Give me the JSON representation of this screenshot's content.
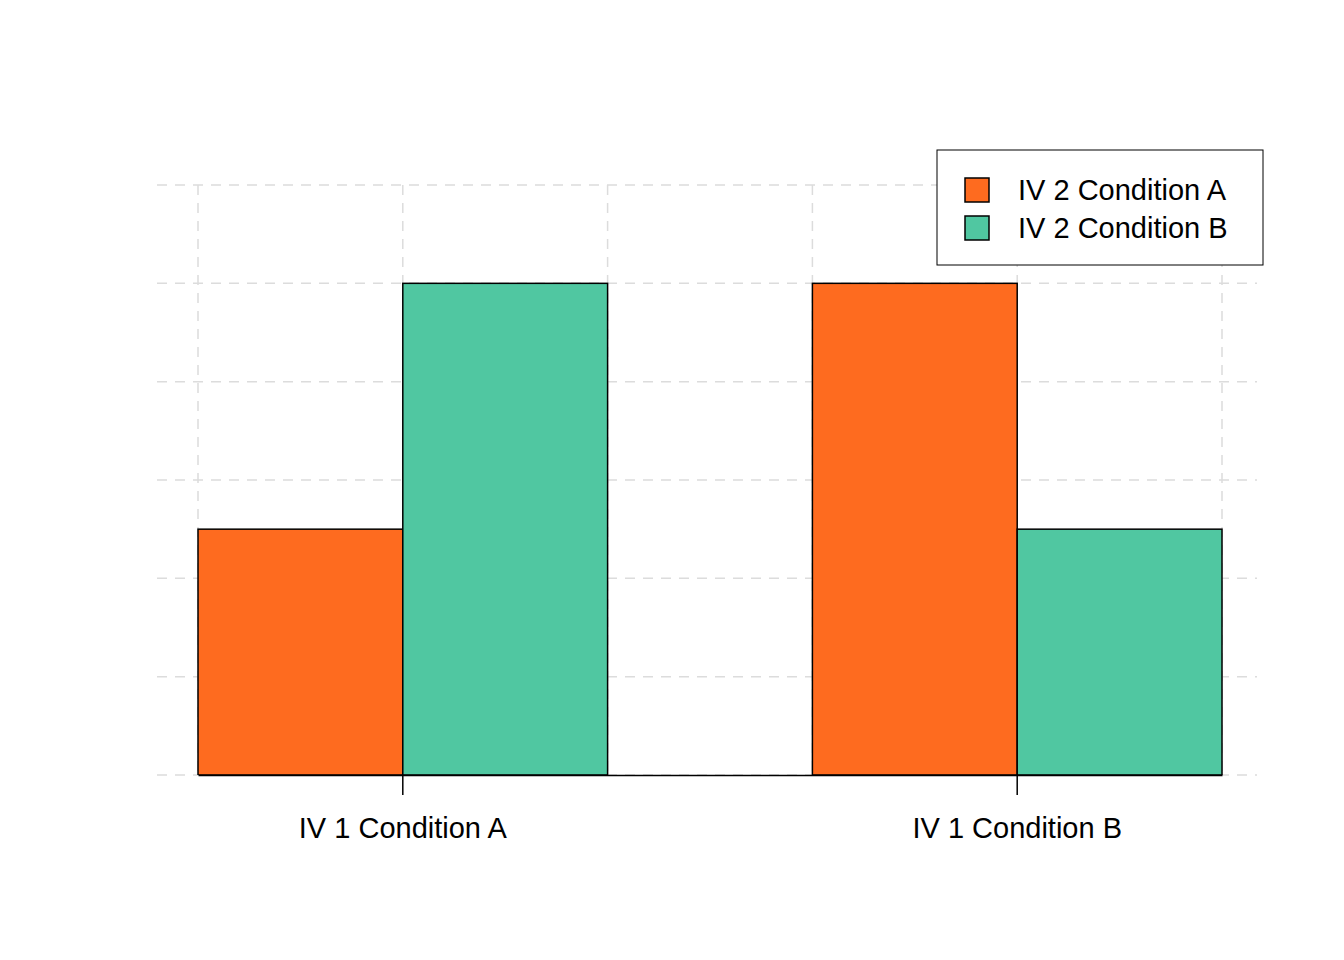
{
  "chart_data": {
    "type": "bar",
    "categories": [
      "IV 1 Condition A",
      "IV 1 Condition B"
    ],
    "series": [
      {
        "name": "IV 2 Condition A",
        "color": "#fe6b1f",
        "values": [
          2.5,
          5
        ]
      },
      {
        "name": "IV 2 Condition B",
        "color": "#50c7a1",
        "values": [
          5,
          2.5
        ]
      }
    ],
    "ylim": [
      0,
      6
    ],
    "yticks": [
      0,
      1,
      2,
      3,
      4,
      5,
      6
    ],
    "grid": true,
    "legend": "top-right",
    "tick_labels": "x"
  }
}
